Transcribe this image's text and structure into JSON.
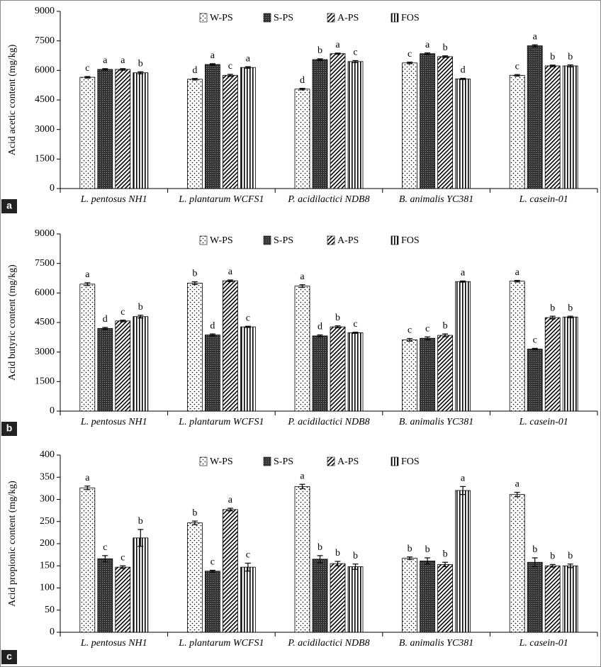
{
  "chart_data": [
    {
      "type": "bar",
      "panel_label": "a",
      "ylabel": "Acid acetic content (mg/kg)",
      "categories": [
        "L. pentosus NH1",
        "L. plantarum WCFS1",
        "P. acidilactici NDB8",
        "B. animalis YC381",
        "L. casein-01"
      ],
      "ylim": [
        0,
        9000
      ],
      "yticks": [
        0,
        1500,
        3000,
        4500,
        6000,
        7500,
        9000
      ],
      "grid": false,
      "series": [
        {
          "name": "W-PS",
          "color": "#000000",
          "pattern": "dots",
          "values": [
            5650,
            5550,
            5050,
            6380,
            5750
          ],
          "errors": [
            40,
            40,
            40,
            40,
            40
          ],
          "letters": [
            "c",
            "d",
            "d",
            "c",
            "c"
          ]
        },
        {
          "name": "S-PS",
          "color": "#000000",
          "pattern": "dense",
          "values": [
            6050,
            6300,
            6550,
            6850,
            7250
          ],
          "errors": [
            40,
            40,
            40,
            40,
            50
          ],
          "letters": [
            "a",
            "a",
            "b",
            "a",
            "a"
          ]
        },
        {
          "name": "A-PS",
          "color": "#000000",
          "pattern": "diagonal",
          "values": [
            6050,
            5750,
            6850,
            6700,
            6230
          ],
          "errors": [
            40,
            50,
            30,
            40,
            40
          ],
          "letters": [
            "a",
            "c",
            "a",
            "b",
            "b"
          ]
        },
        {
          "name": "FOS",
          "color": "#000000",
          "pattern": "vertical",
          "values": [
            5880,
            6150,
            6450,
            5570,
            6230
          ],
          "errors": [
            50,
            40,
            50,
            30,
            50
          ],
          "letters": [
            "b",
            "a",
            "c",
            "d",
            "b"
          ]
        }
      ]
    },
    {
      "type": "bar",
      "panel_label": "b",
      "ylabel": "Acid butyric content (mg/kg)",
      "categories": [
        "L. pentosus NH1",
        "L. plantarum WCFS1",
        "P. acidilactici NDB8",
        "B. animalis YC381",
        "L. casein-01"
      ],
      "ylim": [
        0,
        9000
      ],
      "yticks": [
        0,
        1500,
        3000,
        4500,
        6000,
        7500,
        9000
      ],
      "grid": false,
      "series": [
        {
          "name": "W-PS",
          "color": "#000000",
          "pattern": "dots",
          "values": [
            6450,
            6500,
            6350,
            3620,
            6600
          ],
          "errors": [
            70,
            70,
            70,
            70,
            40
          ],
          "letters": [
            "a",
            "b",
            "a",
            "c",
            "a"
          ]
        },
        {
          "name": "S-PS",
          "color": "#000000",
          "pattern": "dense",
          "values": [
            4200,
            3870,
            3820,
            3700,
            3150
          ],
          "errors": [
            50,
            50,
            50,
            70,
            40
          ],
          "letters": [
            "d",
            "d",
            "d",
            "c",
            "c"
          ]
        },
        {
          "name": "A-PS",
          "color": "#000000",
          "pattern": "diagonal",
          "values": [
            4580,
            6620,
            4280,
            3850,
            4750
          ],
          "errors": [
            40,
            40,
            50,
            70,
            70
          ],
          "letters": [
            "c",
            "a",
            "b",
            "b",
            "b"
          ]
        },
        {
          "name": "FOS",
          "color": "#000000",
          "pattern": "vertical",
          "values": [
            4800,
            4280,
            3980,
            6580,
            4780
          ],
          "errors": [
            70,
            30,
            30,
            30,
            40
          ],
          "letters": [
            "b",
            "c",
            "c",
            "a",
            "b"
          ]
        }
      ]
    },
    {
      "type": "bar",
      "panel_label": "c",
      "ylabel": "Acid propionic content (mg/kg)",
      "categories": [
        "L. pentosus NH1",
        "L. plantarum WCFS1",
        "P. acidilactici NDB8",
        "B. animalis YC381",
        "L. casein-01"
      ],
      "ylim": [
        0,
        400
      ],
      "yticks": [
        0,
        50,
        100,
        150,
        200,
        250,
        300,
        350,
        400
      ],
      "grid": false,
      "series": [
        {
          "name": "W-PS",
          "color": "#000000",
          "pattern": "dots",
          "values": [
            326,
            247,
            329,
            167,
            311
          ],
          "errors": [
            4,
            4,
            5,
            3,
            5
          ],
          "letters": [
            "a",
            "b",
            "a",
            "b",
            "a"
          ]
        },
        {
          "name": "S-PS",
          "color": "#000000",
          "pattern": "dense",
          "values": [
            166,
            138,
            165,
            161,
            158
          ],
          "errors": [
            7,
            2,
            8,
            7,
            10
          ],
          "letters": [
            "c",
            "c",
            "b",
            "b",
            "b"
          ]
        },
        {
          "name": "A-PS",
          "color": "#000000",
          "pattern": "diagonal",
          "values": [
            147,
            277,
            155,
            153,
            150
          ],
          "errors": [
            3,
            3,
            5,
            5,
            3
          ],
          "letters": [
            "c",
            "a",
            "b",
            "b",
            "b"
          ]
        },
        {
          "name": "FOS",
          "color": "#000000",
          "pattern": "vertical",
          "values": [
            213,
            147,
            148,
            320,
            150
          ],
          "errors": [
            19,
            9,
            6,
            9,
            4
          ],
          "letters": [
            "b",
            "c",
            "b",
            "a",
            "b"
          ]
        }
      ]
    }
  ]
}
